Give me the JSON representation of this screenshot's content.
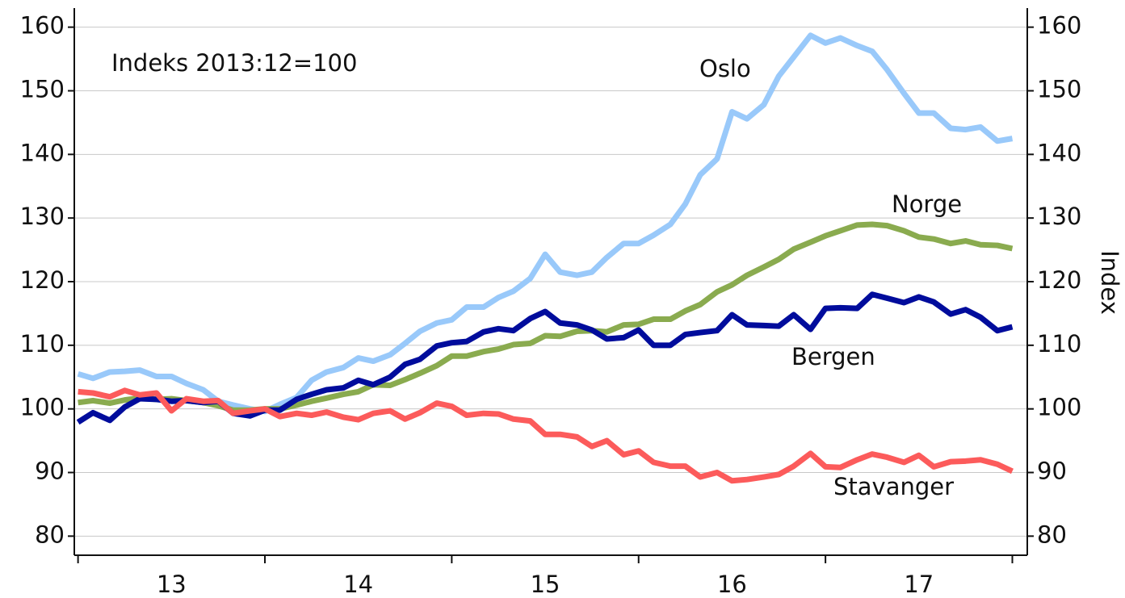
{
  "chart_data": {
    "type": "line",
    "annotations": [
      "Indeks 2013:12=100"
    ],
    "y2label": "Index",
    "x": [
      13.0,
      13.08,
      13.17,
      13.25,
      13.33,
      13.42,
      13.5,
      13.58,
      13.67,
      13.75,
      13.83,
      13.92,
      14.0,
      14.08,
      14.17,
      14.25,
      14.33,
      14.42,
      14.5,
      14.58,
      14.67,
      14.75,
      14.83,
      14.92,
      15.0,
      15.08,
      15.17,
      15.25,
      15.33,
      15.42,
      15.5,
      15.58,
      15.67,
      15.75,
      15.83,
      15.92,
      16.0,
      16.08,
      16.17,
      16.25,
      16.33,
      16.42,
      16.5,
      16.58,
      16.67,
      16.75,
      16.83,
      16.92,
      17.0,
      17.08,
      17.17,
      17.25,
      17.33,
      17.42,
      17.5,
      17.58,
      17.67,
      17.75,
      17.83,
      17.92,
      18.0
    ],
    "series": [
      {
        "name": "Oslo",
        "color": "#99c9fa",
        "values": [
          105.5,
          104.8,
          105.8,
          105.9,
          106.1,
          105.1,
          105.1,
          104.0,
          103.0,
          101.2,
          100.6,
          100.0,
          99.6,
          100.7,
          101.8,
          104.5,
          105.8,
          106.5,
          108.0,
          107.5,
          108.5,
          110.3,
          112.2,
          113.5,
          114.0,
          116.0,
          116.0,
          117.5,
          118.5,
          120.5,
          124.3,
          121.5,
          121.0,
          121.5,
          123.8,
          126.0,
          126.0,
          127.3,
          129.0,
          132.2,
          136.8,
          139.3,
          146.7,
          145.6,
          147.8,
          152.3,
          155.3,
          158.7,
          157.5,
          158.3,
          157.1,
          156.2,
          153.3,
          149.6,
          146.5,
          146.5,
          144.1,
          143.9,
          144.3,
          142.1,
          142.5
        ]
      },
      {
        "name": "Norge",
        "color": "#8aab4f",
        "values": [
          101.0,
          101.3,
          100.9,
          101.4,
          101.7,
          101.5,
          101.6,
          101.3,
          101.0,
          100.5,
          99.8,
          99.8,
          100.0,
          100.0,
          100.6,
          101.2,
          101.7,
          102.3,
          102.7,
          103.8,
          103.7,
          104.6,
          105.6,
          106.8,
          108.3,
          108.3,
          109.0,
          109.4,
          110.1,
          110.3,
          111.5,
          111.4,
          112.2,
          112.3,
          112.1,
          113.2,
          113.3,
          114.1,
          114.1,
          115.4,
          116.4,
          118.4,
          119.5,
          121.0,
          122.3,
          123.5,
          125.1,
          126.2,
          127.2,
          128.0,
          128.9,
          129.0,
          128.8,
          128.0,
          127.0,
          126.7,
          126.0,
          126.4,
          125.8,
          125.7,
          125.2
        ]
      },
      {
        "name": "Bergen",
        "color": "#000c9c",
        "values": [
          97.9,
          99.4,
          98.2,
          100.3,
          101.6,
          101.5,
          101.2,
          101.3,
          101.0,
          101.2,
          99.3,
          98.9,
          99.8,
          99.8,
          101.5,
          102.3,
          103.0,
          103.3,
          104.5,
          103.8,
          105.0,
          107.0,
          107.8,
          109.9,
          110.4,
          110.6,
          112.1,
          112.6,
          112.3,
          114.2,
          115.3,
          113.5,
          113.2,
          112.4,
          111.0,
          111.2,
          112.4,
          110.0,
          110.0,
          111.7,
          112.0,
          112.3,
          114.8,
          113.2,
          113.1,
          113.0,
          114.8,
          112.5,
          115.8,
          115.9,
          115.8,
          118.0,
          117.4,
          116.7,
          117.6,
          116.8,
          114.9,
          115.6,
          114.4,
          112.3,
          112.9
        ]
      },
      {
        "name": "Stavanger",
        "color": "#fc5b5b",
        "values": [
          102.7,
          102.5,
          101.9,
          102.9,
          102.2,
          102.5,
          99.7,
          101.6,
          101.2,
          101.3,
          99.3,
          99.7,
          100.0,
          98.8,
          99.3,
          99.0,
          99.5,
          98.7,
          98.3,
          99.3,
          99.7,
          98.4,
          99.4,
          100.9,
          100.4,
          99.0,
          99.3,
          99.2,
          98.4,
          98.1,
          96.0,
          96.0,
          95.6,
          94.1,
          95.0,
          92.8,
          93.4,
          91.6,
          91.0,
          91.0,
          89.3,
          90.0,
          88.7,
          88.9,
          89.3,
          89.7,
          91.0,
          93.0,
          90.9,
          90.8,
          92.0,
          92.9,
          92.4,
          91.6,
          92.7,
          90.9,
          91.7,
          91.8,
          92.0,
          91.3,
          90.2
        ]
      }
    ],
    "xlim": [
      12.98,
      18.08
    ],
    "xticks": [
      13,
      14,
      15,
      16,
      17,
      18
    ],
    "xtick_labels": [
      {
        "value": 13.5,
        "label": "13"
      },
      {
        "value": 14.5,
        "label": "14"
      },
      {
        "value": 15.5,
        "label": "15"
      },
      {
        "value": 16.5,
        "label": "16"
      },
      {
        "value": 17.5,
        "label": "17"
      }
    ],
    "ylim": [
      77,
      163
    ],
    "yticks": [
      80,
      90,
      100,
      110,
      120,
      130,
      140,
      150,
      160
    ],
    "y2lim": [
      77,
      163
    ],
    "y2ticks": [
      80,
      90,
      100,
      110,
      120,
      130,
      140,
      150,
      160
    ],
    "grid": true
  }
}
